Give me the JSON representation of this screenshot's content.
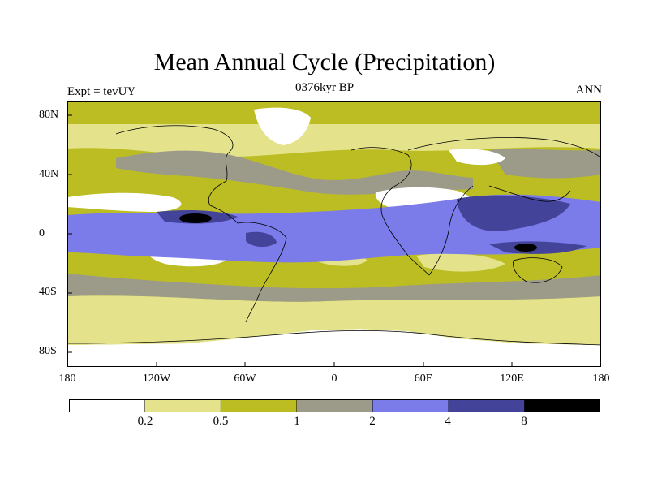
{
  "figure": {
    "title": "Mean Annual Cycle (Precipitation)",
    "subtitle": "0376kyr BP",
    "left_label": "Expt = tevUY",
    "right_label": "ANN"
  },
  "axes": {
    "y_ticks": [
      "80N",
      "40N",
      "0",
      "40S",
      "80S"
    ],
    "x_ticks": [
      "180",
      "120W",
      "60W",
      "0",
      "60E",
      "120E",
      "180"
    ]
  },
  "colorbar": {
    "colors": [
      "#ffffff",
      "#e4e38c",
      "#bcbd22",
      "#9c9b8a",
      "#7b7be9",
      "#43439a",
      "#000000"
    ],
    "labels": [
      "0.2",
      "0.5",
      "1",
      "2",
      "4",
      "8"
    ]
  },
  "map": {
    "projection": "cylindrical equidistant",
    "variable": "precipitation",
    "lon_range": [
      -180,
      180
    ],
    "lat_range": [
      -90,
      90
    ]
  }
}
